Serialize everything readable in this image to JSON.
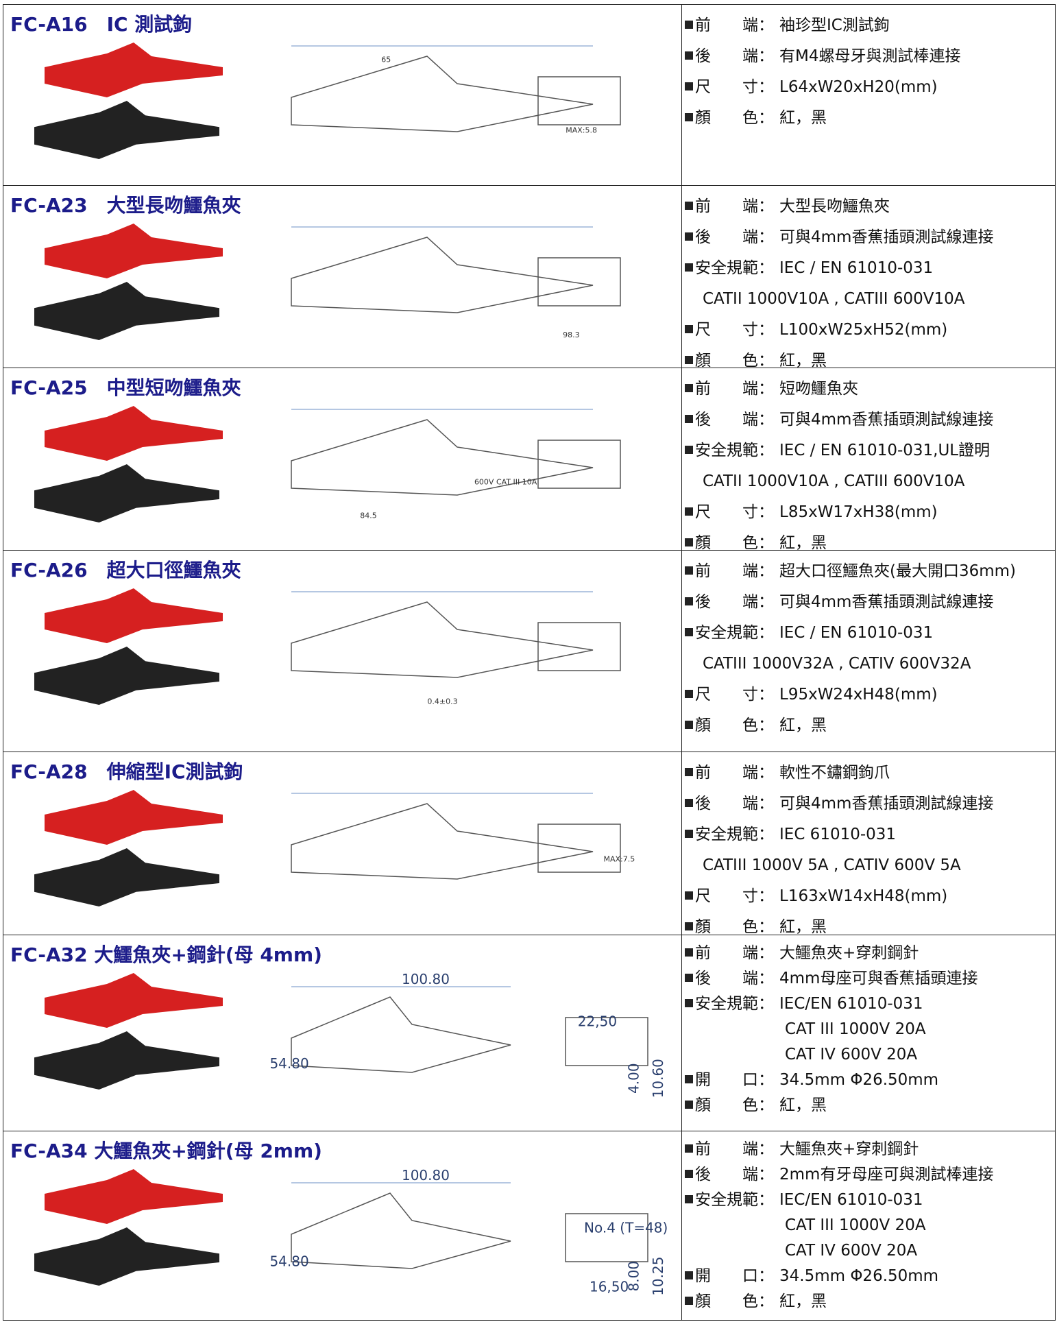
{
  "products": [
    {
      "title": "FC-A16　IC 測試鉤",
      "specs": [
        {
          "label": "前　　端：",
          "value": "袖珍型IC測試鉤"
        },
        {
          "label": "後　　端：",
          "value": "有M4螺母牙與測試棒連接"
        },
        {
          "label": "尺　　寸：",
          "value": "L64xW20xH20(mm)"
        },
        {
          "label": "顏　　色：",
          "value": "紅，黑"
        }
      ],
      "drawing_labels": [
        "65",
        "MAX:5.8"
      ]
    },
    {
      "title": "FC-A23　大型長吻鱷魚夾",
      "specs": [
        {
          "label": "前　　端：",
          "value": "大型長吻鱷魚夾"
        },
        {
          "label": "後　　端：",
          "value": "可與4mm香蕉插頭測試線連接"
        },
        {
          "label": "安全規範：",
          "value": "IEC / EN 61010-031"
        },
        {
          "cont": "CATII 1000V10A , CATIII 600V10A"
        },
        {
          "label": "尺　　寸：",
          "value": "L100xW25xH52(mm)"
        },
        {
          "label": "顏　　色：",
          "value": "紅，黑"
        }
      ],
      "drawing_labels": [
        "98.3"
      ]
    },
    {
      "title": "FC-A25　中型短吻鱷魚夾",
      "specs": [
        {
          "label": "前　　端：",
          "value": "短吻鱷魚夾"
        },
        {
          "label": "後　　端：",
          "value": "可與4mm香蕉插頭測試線連接"
        },
        {
          "label": "安全規範：",
          "value": "IEC / EN 61010-031,UL證明"
        },
        {
          "cont": "CATII 1000V10A , CATIII 600V10A"
        },
        {
          "label": "尺　　寸：",
          "value": "L85xW17xH38(mm)"
        },
        {
          "label": "顏　　色：",
          "value": "紅，黑"
        }
      ],
      "drawing_labels": [
        "84.5",
        "600V CAT III 10A"
      ]
    },
    {
      "title": "FC-A26　超大口徑鱷魚夾",
      "specs": [
        {
          "label": "前　　端：",
          "value": "超大口徑鱷魚夾(最大開口36mm)"
        },
        {
          "label": "後　　端：",
          "value": "可與4mm香蕉插頭測試線連接"
        },
        {
          "label": "安全規範：",
          "value": "IEC / EN 61010-031"
        },
        {
          "cont": "CATIII 1000V32A , CATIV 600V32A"
        },
        {
          "label": "尺　　寸：",
          "value": "L95xW24xH48(mm)"
        },
        {
          "label": "顏　　色：",
          "value": "紅，黑"
        }
      ],
      "drawing_labels": [
        "0.4±0.3"
      ]
    },
    {
      "title": "FC-A28　伸縮型IC測試鉤",
      "specs": [
        {
          "label": "前　　端：",
          "value": "軟性不鏽鋼鉤爪"
        },
        {
          "label": "後　　端：",
          "value": "可與4mm香蕉插頭測試線連接"
        },
        {
          "label": "安全規範：",
          "value": "IEC 61010-031"
        },
        {
          "cont": "CATIII 1000V 5A , CATIV 600V 5A"
        },
        {
          "label": "尺　　寸：",
          "value": "L163xW14xH48(mm)"
        },
        {
          "label": "顏　　色：",
          "value": "紅，黑"
        }
      ],
      "drawing_labels": [
        "MAX:7.5"
      ]
    },
    {
      "title": "FC-A32  大鱷魚夾+鋼針(母 4mm)",
      "specs": [
        {
          "label": "前　　端：",
          "value": "大鱷魚夾+穿刺鋼針"
        },
        {
          "label": "後　　端：",
          "value": "4mm母座可與香蕉插頭連接"
        },
        {
          "label": "安全規範：",
          "value": "IEC/EN 61010-031"
        },
        {
          "cont": "CAT III 1000V 20A"
        },
        {
          "cont": "CAT IV 600V 20A"
        },
        {
          "label": "開　　口：",
          "value": "34.5mm  Φ26.50mm"
        },
        {
          "label": "顏　　色：",
          "value": "紅，黑"
        }
      ],
      "drawing_labels": [
        "100.80",
        "54.80",
        "22,50",
        "4.00",
        "10.60"
      ]
    },
    {
      "title": "FC-A34  大鱷魚夾+鋼針(母 2mm)",
      "specs": [
        {
          "label": "前　　端：",
          "value": "大鱷魚夾+穿刺鋼針"
        },
        {
          "label": "後　　端：",
          "value": "2mm有牙母座可與測試棒連接"
        },
        {
          "label": "安全規範：",
          "value": "IEC/EN 61010-031"
        },
        {
          "cont": "CAT III 1000V 20A"
        },
        {
          "cont": "CAT IV 600V 20A"
        },
        {
          "label": "開　　口：",
          "value": "34.5mm  Φ26.50mm"
        },
        {
          "label": "顏　　色：",
          "value": "紅，黑"
        }
      ],
      "drawing_labels": [
        "100.80",
        "54.80",
        "No.4 (T=48)",
        "16,50",
        "8.00",
        "10.25"
      ]
    }
  ]
}
